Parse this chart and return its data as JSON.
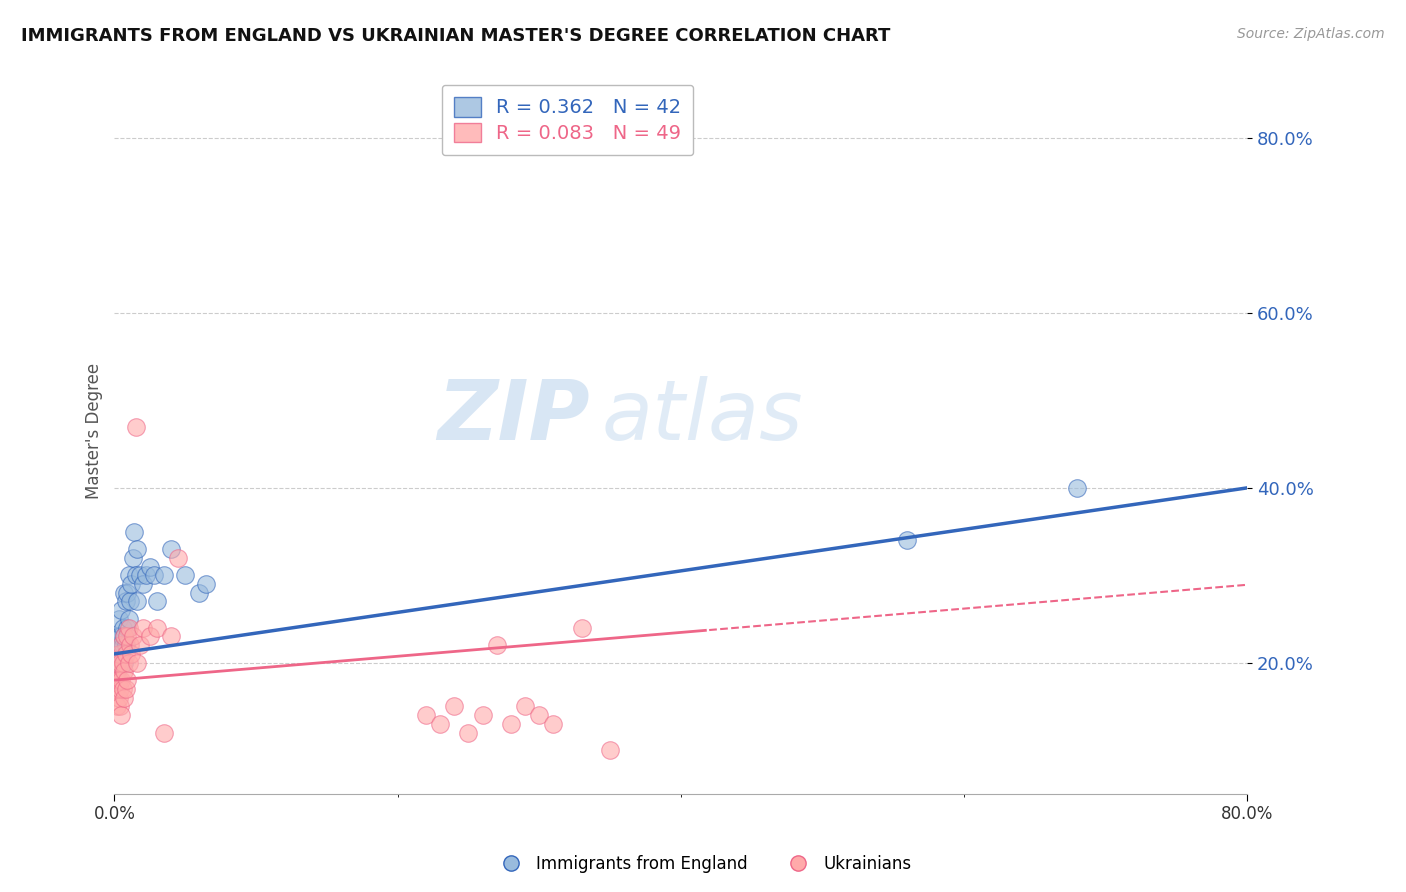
{
  "title": "IMMIGRANTS FROM ENGLAND VS UKRAINIAN MASTER'S DEGREE CORRELATION CHART",
  "source": "Source: ZipAtlas.com",
  "ylabel": "Master's Degree",
  "y_tick_values": [
    0.2,
    0.4,
    0.6,
    0.8
  ],
  "x_lim": [
    0.0,
    0.8
  ],
  "y_lim": [
    0.05,
    0.88
  ],
  "legend1_label": "R = 0.362   N = 42",
  "legend2_label": "R = 0.083   N = 49",
  "legend1_series": "Immigrants from England",
  "legend2_series": "Ukrainians",
  "blue_color": "#99BBDD",
  "pink_color": "#FFAAAA",
  "trend_blue": "#3366BB",
  "trend_pink": "#EE6688",
  "watermark_zip": "ZIP",
  "watermark_atlas": "atlas",
  "blue_r": 0.362,
  "blue_n": 42,
  "pink_r": 0.083,
  "pink_n": 49,
  "blue_scatter_x": [
    0.001,
    0.002,
    0.002,
    0.003,
    0.003,
    0.003,
    0.004,
    0.004,
    0.005,
    0.005,
    0.005,
    0.006,
    0.006,
    0.007,
    0.007,
    0.007,
    0.008,
    0.008,
    0.009,
    0.009,
    0.01,
    0.01,
    0.011,
    0.012,
    0.013,
    0.014,
    0.015,
    0.016,
    0.016,
    0.018,
    0.02,
    0.022,
    0.025,
    0.028,
    0.03,
    0.035,
    0.04,
    0.05,
    0.06,
    0.065,
    0.56,
    0.68
  ],
  "blue_scatter_y": [
    0.2,
    0.19,
    0.22,
    0.21,
    0.23,
    0.25,
    0.2,
    0.22,
    0.21,
    0.23,
    0.26,
    0.22,
    0.24,
    0.2,
    0.23,
    0.28,
    0.22,
    0.27,
    0.24,
    0.28,
    0.25,
    0.3,
    0.27,
    0.29,
    0.32,
    0.35,
    0.3,
    0.27,
    0.33,
    0.3,
    0.29,
    0.3,
    0.31,
    0.3,
    0.27,
    0.3,
    0.33,
    0.3,
    0.28,
    0.29,
    0.34,
    0.4
  ],
  "pink_scatter_x": [
    0.001,
    0.001,
    0.002,
    0.002,
    0.002,
    0.003,
    0.003,
    0.003,
    0.004,
    0.004,
    0.004,
    0.005,
    0.005,
    0.005,
    0.006,
    0.006,
    0.007,
    0.007,
    0.007,
    0.008,
    0.008,
    0.009,
    0.009,
    0.01,
    0.01,
    0.011,
    0.012,
    0.013,
    0.015,
    0.016,
    0.018,
    0.02,
    0.025,
    0.03,
    0.035,
    0.04,
    0.045,
    0.22,
    0.23,
    0.24,
    0.25,
    0.26,
    0.27,
    0.28,
    0.29,
    0.3,
    0.31,
    0.33,
    0.35
  ],
  "pink_scatter_y": [
    0.17,
    0.19,
    0.15,
    0.18,
    0.2,
    0.16,
    0.18,
    0.21,
    0.15,
    0.17,
    0.2,
    0.14,
    0.18,
    0.22,
    0.17,
    0.2,
    0.16,
    0.19,
    0.23,
    0.17,
    0.21,
    0.18,
    0.23,
    0.2,
    0.24,
    0.22,
    0.21,
    0.23,
    0.47,
    0.2,
    0.22,
    0.24,
    0.23,
    0.24,
    0.12,
    0.23,
    0.32,
    0.14,
    0.13,
    0.15,
    0.12,
    0.14,
    0.22,
    0.13,
    0.15,
    0.14,
    0.13,
    0.24,
    0.1
  ],
  "background_color": "#FFFFFF",
  "grid_color": "#CCCCCC"
}
